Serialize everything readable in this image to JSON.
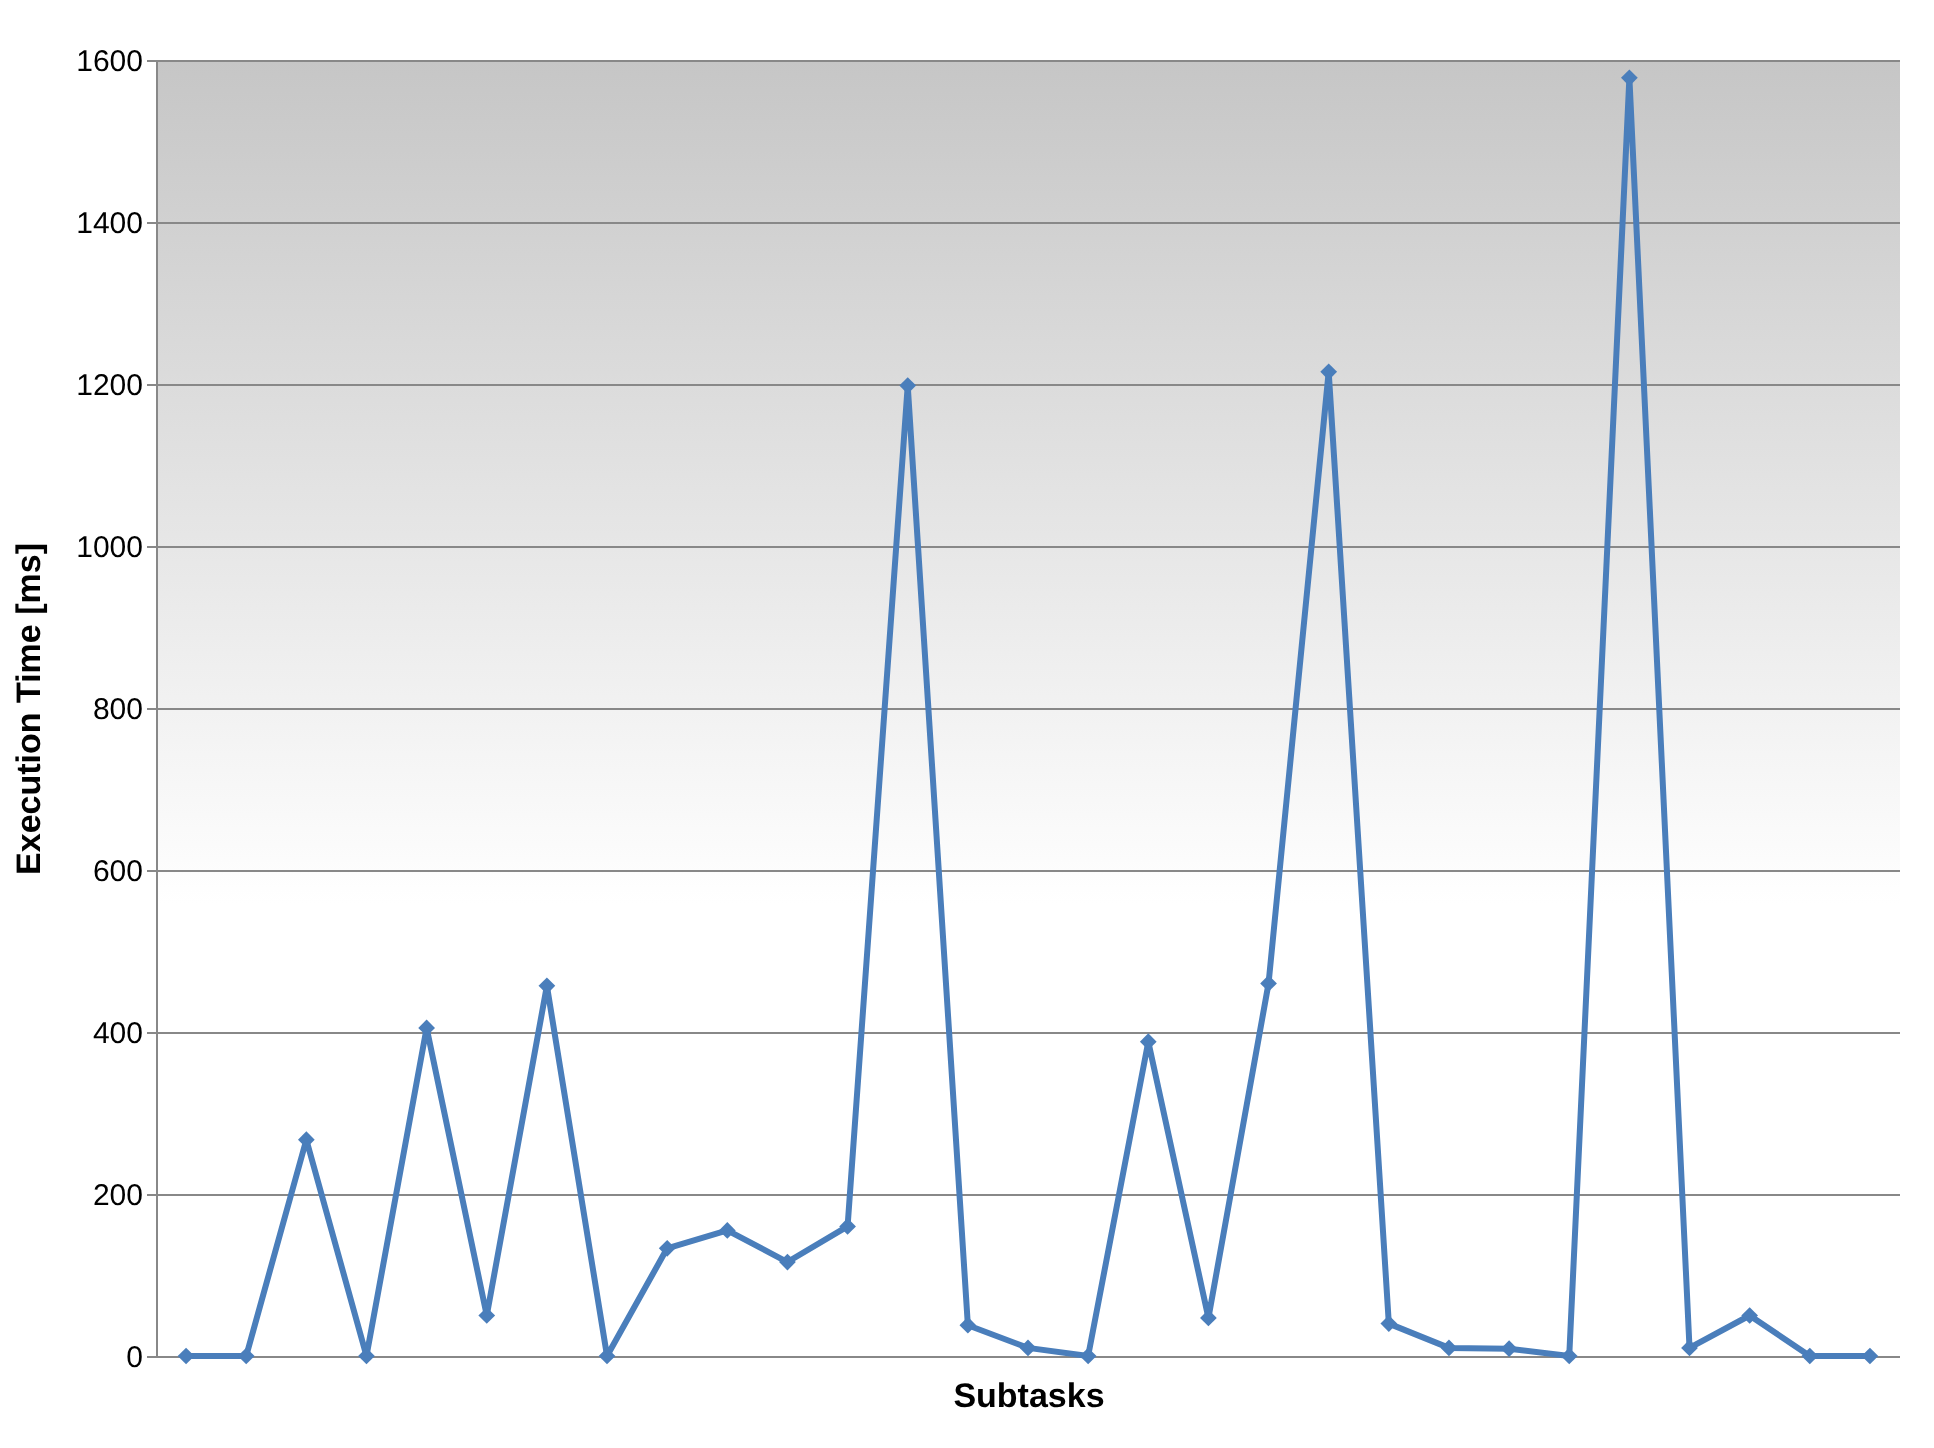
{
  "chart_data": {
    "type": "line",
    "xlabel": "Subtasks",
    "ylabel": "Execution Time [ms]",
    "categories": [
      null,
      null,
      null,
      null,
      null,
      null,
      null,
      null,
      null,
      null,
      null,
      null,
      null,
      null,
      null,
      null,
      null,
      null,
      null,
      null,
      null,
      null,
      null,
      null,
      null,
      null,
      null,
      null,
      null
    ],
    "series": [
      {
        "color": "#4a7ebb",
        "values": [
          0,
          0,
          267,
          0,
          405,
          50,
          457,
          0,
          133,
          155,
          116,
          160,
          1198,
          38,
          10,
          0,
          388,
          47,
          460,
          1215,
          40,
          10,
          9,
          0,
          1578,
          10,
          50,
          0,
          0
        ]
      }
    ],
    "ylim": [
      0,
      1600
    ],
    "yticks": [
      0,
      200,
      400,
      600,
      800,
      1000,
      1200,
      1400,
      1600
    ],
    "grid": "y",
    "tick_labels": "y",
    "marker": "diamond",
    "line_style": "solid"
  }
}
